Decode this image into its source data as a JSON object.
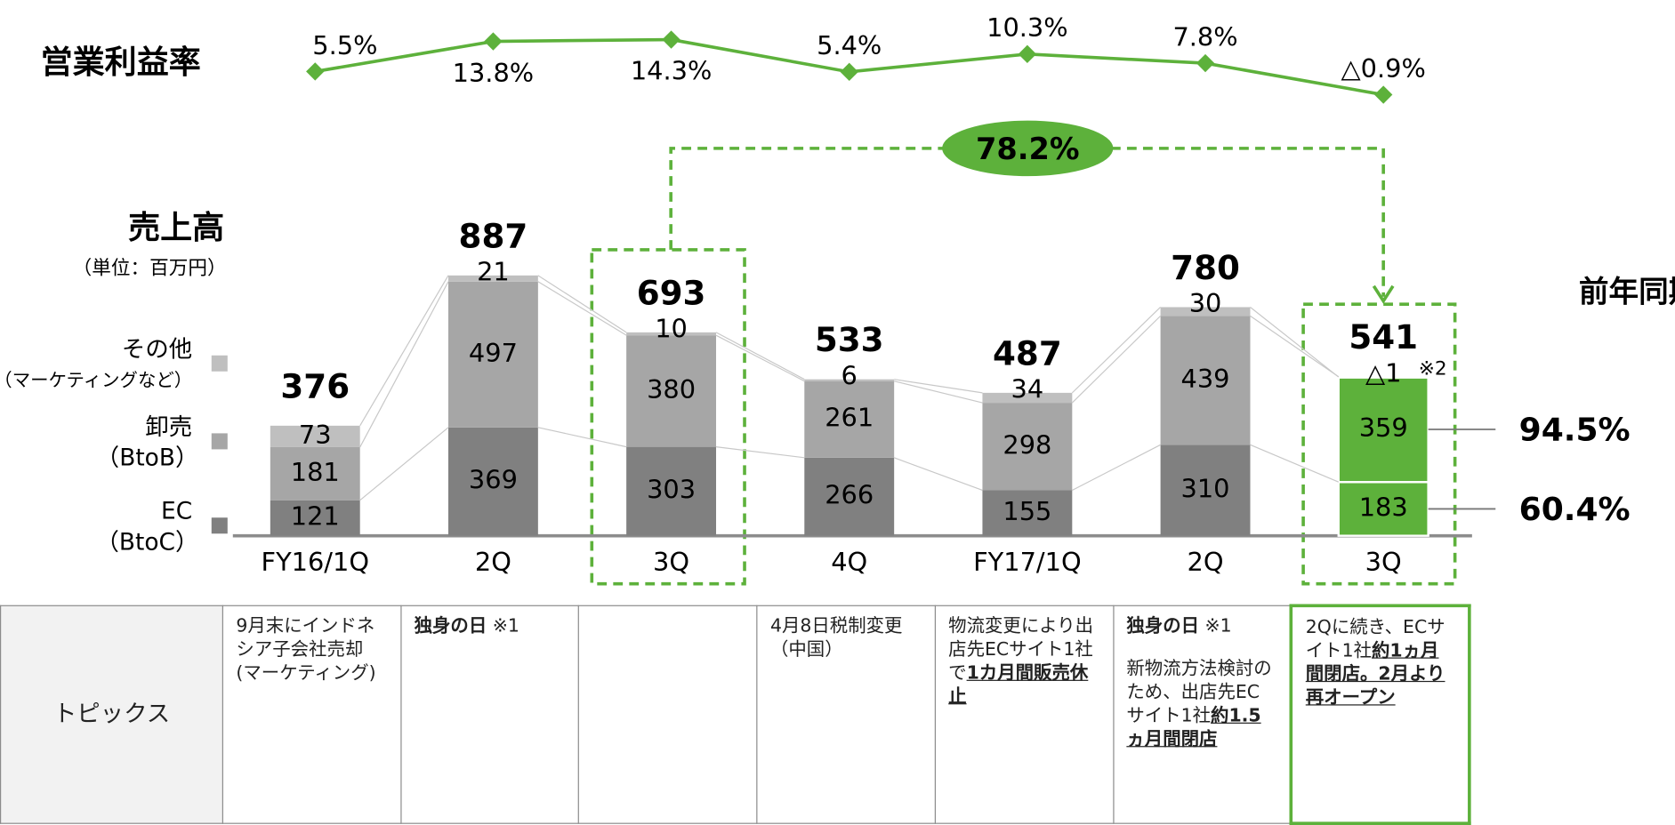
{
  "chart_data": [
    {
      "type": "line",
      "title": "営業利益率",
      "color": "#5db13b",
      "values": [
        5.5,
        13.8,
        14.3,
        5.4,
        10.3,
        7.8,
        -0.9
      ],
      "value_labels": [
        "5.5%",
        "13.8%",
        "14.3%",
        "5.4%",
        "10.3%",
        "7.8%",
        "△0.9%"
      ]
    },
    {
      "type": "bar",
      "stacked": true,
      "title": "売上高",
      "subtitle": "（単位：百万円）",
      "categories": [
        "FY16/1Q",
        "2Q",
        "3Q",
        "4Q",
        "FY17/1Q",
        "2Q",
        "3Q"
      ],
      "series": [
        {
          "name": "EC",
          "note": "（BtoC）",
          "color": "#808080",
          "colors": [
            "#808080",
            "#808080",
            "#808080",
            "#808080",
            "#808080",
            "#808080",
            "#5db13b"
          ],
          "values": [
            121,
            369,
            303,
            266,
            155,
            310,
            183
          ]
        },
        {
          "name": "卸売",
          "note": "（BtoB）",
          "color": "#a6a6a6",
          "colors": [
            "#a6a6a6",
            "#a6a6a6",
            "#a6a6a6",
            "#a6a6a6",
            "#a6a6a6",
            "#a6a6a6",
            "#5db13b"
          ],
          "values": [
            181,
            497,
            380,
            261,
            298,
            439,
            359
          ]
        },
        {
          "name": "その他",
          "note": "（マーケティングなど）",
          "color": "#bfbfbf",
          "colors": [
            "#bfbfbf",
            "#bfbfbf",
            "#bfbfbf",
            "#bfbfbf",
            "#bfbfbf",
            "#bfbfbf",
            "#5db13b"
          ],
          "values": [
            73,
            21,
            10,
            6,
            34,
            30,
            -1
          ],
          "value_labels": [
            "73",
            "21",
            "10",
            "6",
            "34",
            "30",
            "△1"
          ]
        }
      ],
      "totals": [
        376,
        887,
        693,
        533,
        487,
        780,
        541
      ],
      "note": "※2",
      "growth": {
        "value": 78.2,
        "label": "78.2%"
      },
      "yoy": {
        "title": "前年同期比",
        "values": [
          94.5,
          60.4
        ],
        "value_labels": [
          "94.5%",
          "60.4%"
        ]
      }
    }
  ],
  "table": {
    "header": "トピックス",
    "cells": [
      [
        [
          {
            "text": "9月末にインドネシア子会社売却(マーケティング)"
          }
        ]
      ],
      [
        [
          {
            "text": "独身の日",
            "b": true
          },
          {
            "text": " ※1"
          }
        ]
      ],
      [],
      [
        [
          {
            "text": "4月8日税制変更（中国）"
          }
        ]
      ],
      [
        [
          {
            "text": "物流変更により出店先ECサイト1社で"
          },
          {
            "text": "1カ月間販売休止",
            "b": true,
            "u": true
          }
        ]
      ],
      [
        [
          {
            "text": "独身の日",
            "b": true
          },
          {
            "text": " ※1"
          }
        ],
        [
          {
            "text": "新物流方法検討のため、出店先ECサイト1社"
          },
          {
            "text": "約1.5ヵ月間閉店",
            "b": true,
            "u": true
          }
        ]
      ],
      [
        [
          {
            "text": "2Qに続き、ECサイト1社"
          },
          {
            "text": "約1ヵ月間閉店。2月より再オープン",
            "b": true,
            "u": true
          }
        ]
      ]
    ]
  }
}
